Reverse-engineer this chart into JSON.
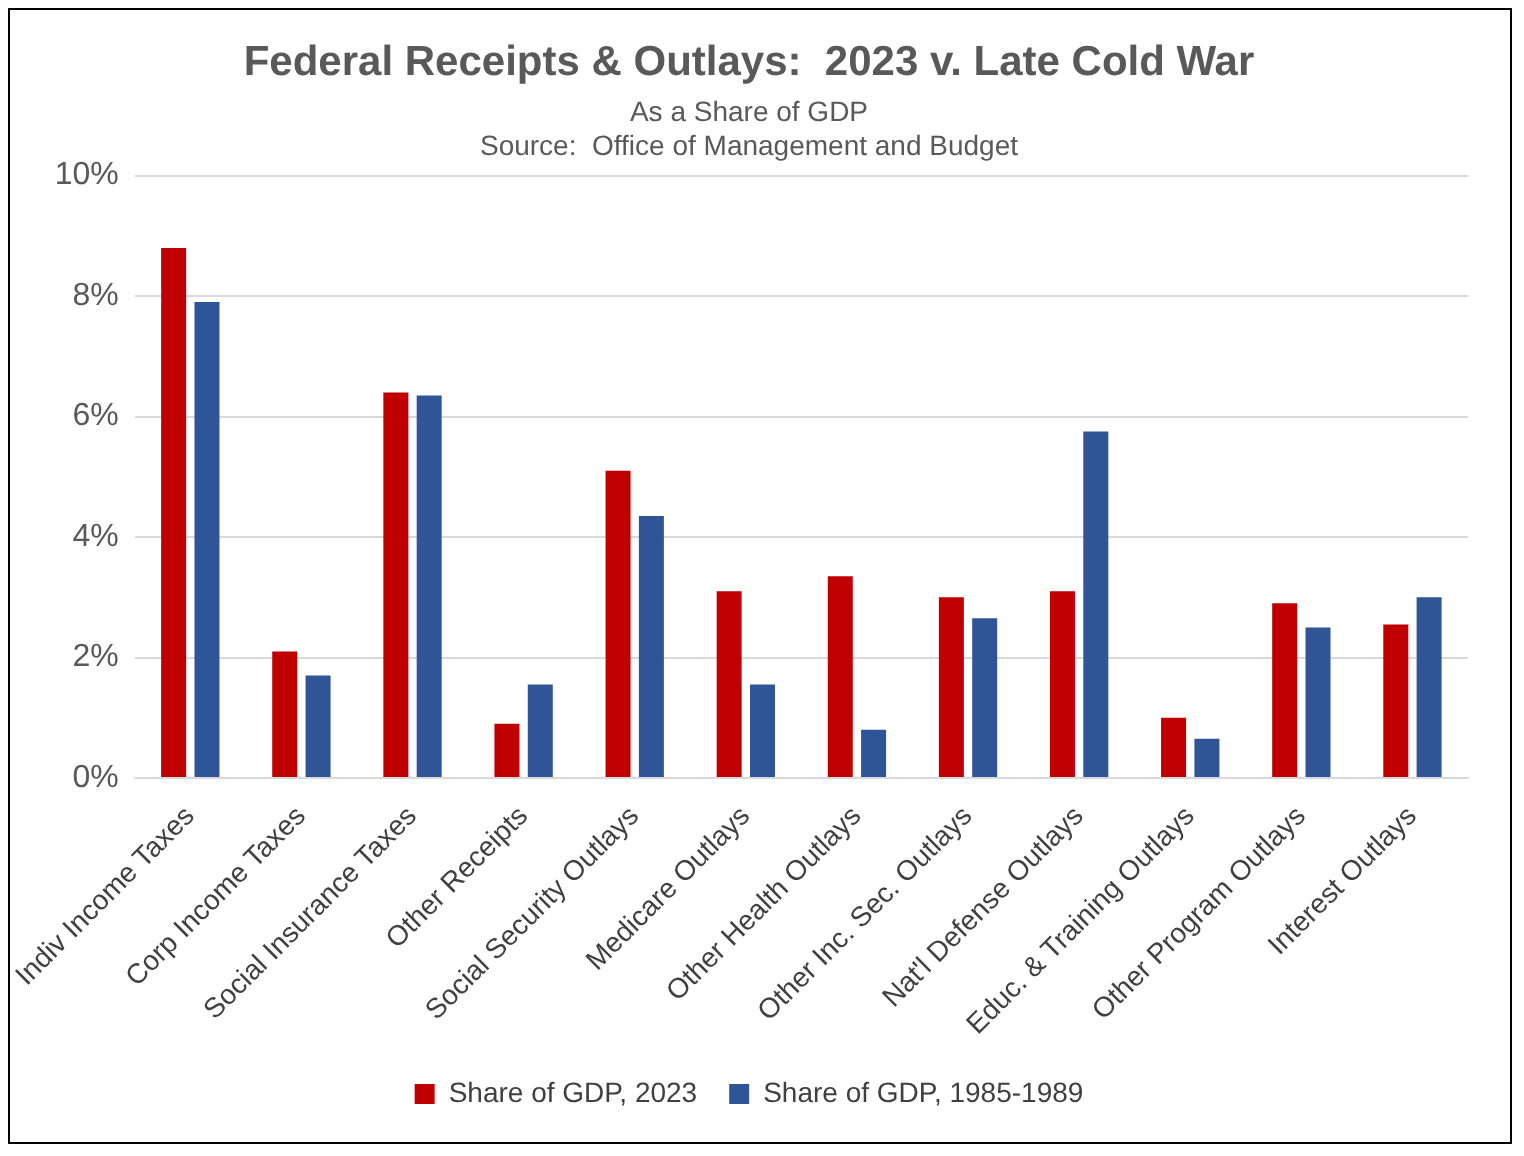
{
  "chart_data": {
    "type": "bar",
    "title": "Federal Receipts & Outlays:  2023 v. Late Cold War",
    "subtitle": "As a Share of GDP",
    "annotations": [
      "Source:  Office of Management and Budget"
    ],
    "categories": [
      "Indiv Income Taxes",
      "Corp Income Taxes",
      "Social Insurance Taxes",
      "Other Receipts",
      "Social Security Outlays",
      "Medicare Outlays",
      "Other Health Outlays",
      "Other Inc. Sec. Outlays",
      "Nat'l Defense Outlays",
      "Educ. & Training Outlays",
      "Other Program Outlays",
      "Interest Outlays"
    ],
    "series": [
      {
        "name": "Share of GDP, 2023",
        "color": "#c00000",
        "values": [
          8.8,
          2.1,
          6.4,
          0.9,
          5.1,
          3.1,
          3.35,
          3.0,
          3.1,
          1.0,
          2.9,
          2.55
        ]
      },
      {
        "name": "Share of GDP, 1985-1989",
        "color": "#2f5597",
        "values": [
          7.9,
          1.7,
          6.35,
          1.55,
          4.35,
          1.55,
          0.8,
          2.65,
          5.75,
          0.65,
          2.5,
          3.0
        ]
      }
    ],
    "ylim": [
      0,
      10
    ],
    "yticks": [
      {
        "value": 0,
        "label": "0%"
      },
      {
        "value": 2,
        "label": "2%"
      },
      {
        "value": 4,
        "label": "4%"
      },
      {
        "value": 6,
        "label": "6%"
      },
      {
        "value": 8,
        "label": "8%"
      },
      {
        "value": 10,
        "label": "10%"
      }
    ],
    "grid": "y",
    "legend": "bottom"
  }
}
